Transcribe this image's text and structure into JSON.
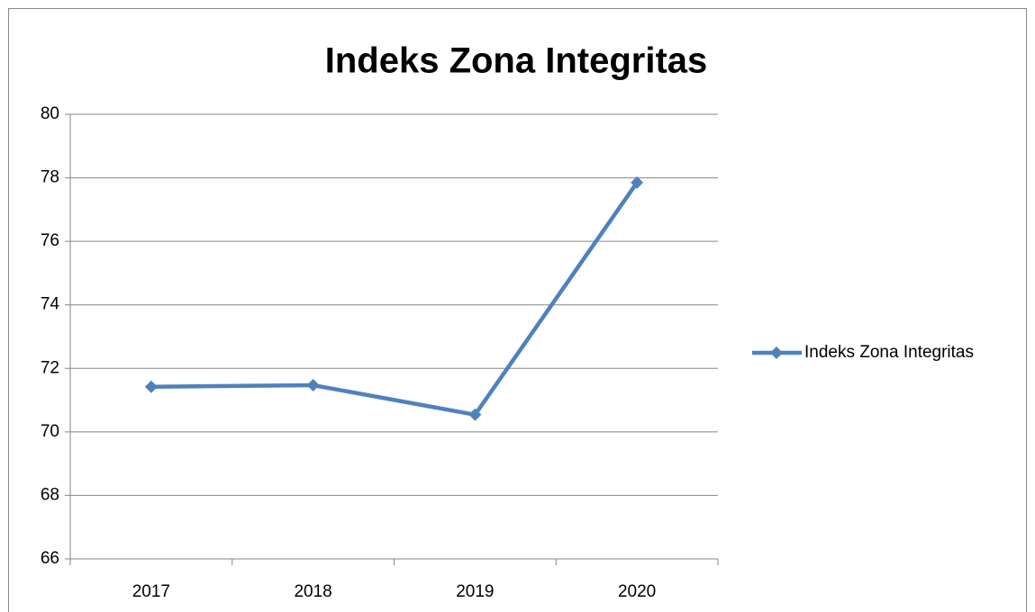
{
  "chart_data": {
    "type": "line",
    "title": "Indeks Zona Integritas",
    "categories": [
      "2017",
      "2018",
      "2019",
      "2020"
    ],
    "series": [
      {
        "name": "Indeks Zona Integritas",
        "color": "#4f81bd",
        "values": [
          71.42,
          71.47,
          70.54,
          77.85
        ]
      }
    ],
    "ylim": [
      66,
      80
    ],
    "yticks": [
      66,
      68,
      70,
      72,
      74,
      76,
      78,
      80
    ],
    "grid": true,
    "legend": "right"
  }
}
